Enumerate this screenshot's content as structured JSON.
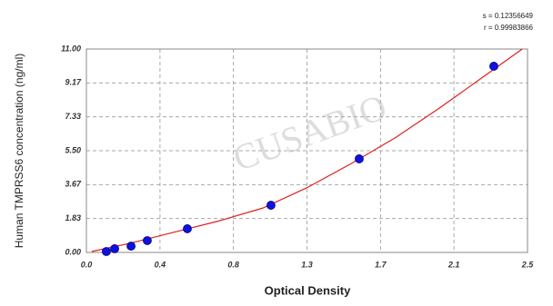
{
  "chart_data": {
    "type": "scatter",
    "x_label": "Optical Density",
    "y_label": "Human TMPRSS6 concentration (ng/ml)",
    "annotations": [
      "s = 0.12356649",
      "r = 0.99983866"
    ],
    "watermark": "CUSABIO",
    "grid": true,
    "xlim": [
      0,
      2.5
    ],
    "ylim": [
      0,
      11
    ],
    "xticks": [
      {
        "value": 0,
        "label": "0.0"
      },
      {
        "value": 0.417,
        "label": "0.4"
      },
      {
        "value": 0.833,
        "label": "0.8"
      },
      {
        "value": 1.25,
        "label": "1.3"
      },
      {
        "value": 1.667,
        "label": "1.7"
      },
      {
        "value": 2.083,
        "label": "2.1"
      },
      {
        "value": 2.5,
        "label": "2.5"
      }
    ],
    "yticks": [
      {
        "value": 0,
        "label": "0.00"
      },
      {
        "value": 1.833,
        "label": "1.83"
      },
      {
        "value": 3.667,
        "label": "3.67"
      },
      {
        "value": 5.5,
        "label": "5.50"
      },
      {
        "value": 7.333,
        "label": "7.33"
      },
      {
        "value": 9.167,
        "label": "9.17"
      },
      {
        "value": 11,
        "label": "11.00"
      }
    ],
    "series": [
      {
        "kind": "points",
        "color": "#1010e0",
        "x": [
          0.113,
          0.16,
          0.253,
          0.345,
          0.572,
          1.046,
          1.546,
          2.309
        ],
        "values": [
          0.05,
          0.2,
          0.34,
          0.64,
          1.28,
          2.55,
          5.06,
          10.07
        ]
      },
      {
        "kind": "curve",
        "color": "#e02020",
        "x": [
          0.03,
          0.25,
          0.5,
          0.75,
          1,
          1.25,
          1.5,
          1.75,
          2,
          2.25,
          2.47
        ],
        "values": [
          0.05,
          0.5,
          1.1,
          1.7,
          2.4,
          3.5,
          4.8,
          6.2,
          7.8,
          9.5,
          11
        ]
      }
    ]
  }
}
